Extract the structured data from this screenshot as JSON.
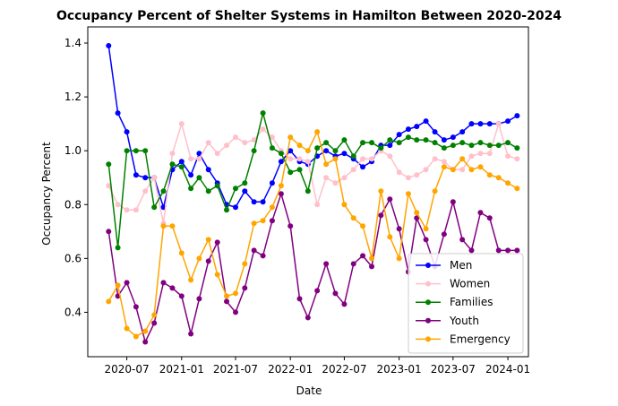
{
  "chart_data": {
    "type": "line",
    "title": "Occupancy Percent of Shelter Systems in Hamilton Between 2020-2024",
    "xlabel": "Date",
    "ylabel": "Occupancy Percent",
    "ylim": [
      0.235,
      1.46
    ],
    "xlim": [
      "2020-02-21",
      "2024-03-10"
    ],
    "x_ticks": [
      "2020-07-01",
      "2021-01-01",
      "2021-07-01",
      "2022-01-01",
      "2022-07-01",
      "2023-01-01",
      "2023-07-01",
      "2024-01-01"
    ],
    "x_tick_labels": [
      "2020-07",
      "2021-01",
      "2021-07",
      "2022-01",
      "2022-07",
      "2023-01",
      "2023-07",
      "2024-01"
    ],
    "y_ticks": [
      0.4,
      0.6,
      0.8,
      1.0,
      1.2,
      1.4
    ],
    "y_tick_labels": [
      "0.4",
      "0.6",
      "0.8",
      "1.0",
      "1.2",
      "1.4"
    ],
    "legend_position": "lower right",
    "grid": false,
    "x": [
      "2020-05-01",
      "2020-06-01",
      "2020-07-01",
      "2020-08-01",
      "2020-09-01",
      "2020-10-01",
      "2020-11-01",
      "2020-12-01",
      "2021-01-01",
      "2021-02-01",
      "2021-03-01",
      "2021-04-01",
      "2021-05-01",
      "2021-06-01",
      "2021-07-01",
      "2021-08-01",
      "2021-09-01",
      "2021-10-01",
      "2021-11-01",
      "2021-12-01",
      "2022-01-01",
      "2022-02-01",
      "2022-03-01",
      "2022-04-01",
      "2022-05-01",
      "2022-06-01",
      "2022-07-01",
      "2022-08-01",
      "2022-09-01",
      "2022-10-01",
      "2022-11-01",
      "2022-12-01",
      "2023-01-01",
      "2023-02-01",
      "2023-03-01",
      "2023-04-01",
      "2023-05-01",
      "2023-06-01",
      "2023-07-01",
      "2023-08-01",
      "2023-09-01",
      "2023-10-01",
      "2023-11-01",
      "2023-12-01",
      "2024-01-01",
      "2024-02-01"
    ],
    "series": [
      {
        "name": "Men",
        "color": "#0000ff",
        "values": [
          1.39,
          1.14,
          1.07,
          0.91,
          0.9,
          0.9,
          0.79,
          0.93,
          0.96,
          0.91,
          0.99,
          0.93,
          0.88,
          0.8,
          0.79,
          0.85,
          0.81,
          0.81,
          0.88,
          0.96,
          1.0,
          0.96,
          0.95,
          0.98,
          1.0,
          0.98,
          0.99,
          0.97,
          0.94,
          0.96,
          1.02,
          1.02,
          1.06,
          1.08,
          1.09,
          1.11,
          1.07,
          1.04,
          1.05,
          1.07,
          1.1,
          1.1,
          1.1,
          1.1,
          1.11,
          1.13
        ]
      },
      {
        "name": "Women",
        "color": "#ffc0cb",
        "values": [
          0.87,
          0.8,
          0.78,
          0.78,
          0.85,
          0.9,
          0.73,
          0.99,
          1.1,
          0.97,
          0.97,
          1.03,
          0.99,
          1.02,
          1.05,
          1.03,
          1.04,
          1.08,
          1.05,
          1.0,
          0.97,
          0.97,
          0.96,
          0.8,
          0.9,
          0.88,
          0.9,
          0.93,
          0.97,
          0.97,
          1.0,
          0.98,
          0.92,
          0.9,
          0.91,
          0.93,
          0.97,
          0.96,
          0.93,
          0.93,
          0.98,
          0.99,
          0.99,
          1.1,
          0.98,
          0.97
        ]
      },
      {
        "name": "Families",
        "color": "#008000",
        "values": [
          0.95,
          0.64,
          1.0,
          1.0,
          1.0,
          0.79,
          0.85,
          0.95,
          0.94,
          0.86,
          0.9,
          0.85,
          0.87,
          0.78,
          0.86,
          0.88,
          1.0,
          1.14,
          1.01,
          0.99,
          0.92,
          0.93,
          0.85,
          1.01,
          1.03,
          1.0,
          1.04,
          0.98,
          1.03,
          1.03,
          1.01,
          1.04,
          1.03,
          1.05,
          1.04,
          1.04,
          1.03,
          1.01,
          1.02,
          1.03,
          1.02,
          1.03,
          1.02,
          1.02,
          1.03,
          1.01
        ]
      },
      {
        "name": "Youth",
        "color": "#800080",
        "values": [
          0.7,
          0.46,
          0.51,
          0.42,
          0.29,
          0.36,
          0.51,
          0.49,
          0.46,
          0.32,
          0.45,
          0.59,
          0.66,
          0.44,
          0.4,
          0.49,
          0.63,
          0.61,
          0.74,
          0.84,
          0.72,
          0.45,
          0.38,
          0.48,
          0.58,
          0.47,
          0.43,
          0.58,
          0.61,
          0.57,
          0.76,
          0.82,
          0.71,
          0.55,
          0.75,
          0.67,
          0.57,
          0.69,
          0.81,
          0.67,
          0.63,
          0.77,
          0.75,
          0.63,
          0.63,
          0.63
        ]
      },
      {
        "name": "Emergency",
        "color": "#ffa500",
        "values": [
          0.44,
          0.5,
          0.34,
          0.31,
          0.33,
          0.39,
          0.72,
          0.72,
          0.62,
          0.52,
          0.6,
          0.67,
          0.54,
          0.46,
          0.47,
          0.58,
          0.73,
          0.74,
          0.79,
          0.87,
          1.05,
          1.02,
          1.0,
          1.07,
          0.95,
          0.97,
          0.8,
          0.75,
          0.72,
          0.6,
          0.85,
          0.68,
          0.6,
          0.84,
          0.77,
          0.71,
          0.85,
          0.94,
          0.93,
          0.97,
          0.93,
          0.94,
          0.91,
          0.9,
          0.88,
          0.86
        ]
      }
    ]
  }
}
